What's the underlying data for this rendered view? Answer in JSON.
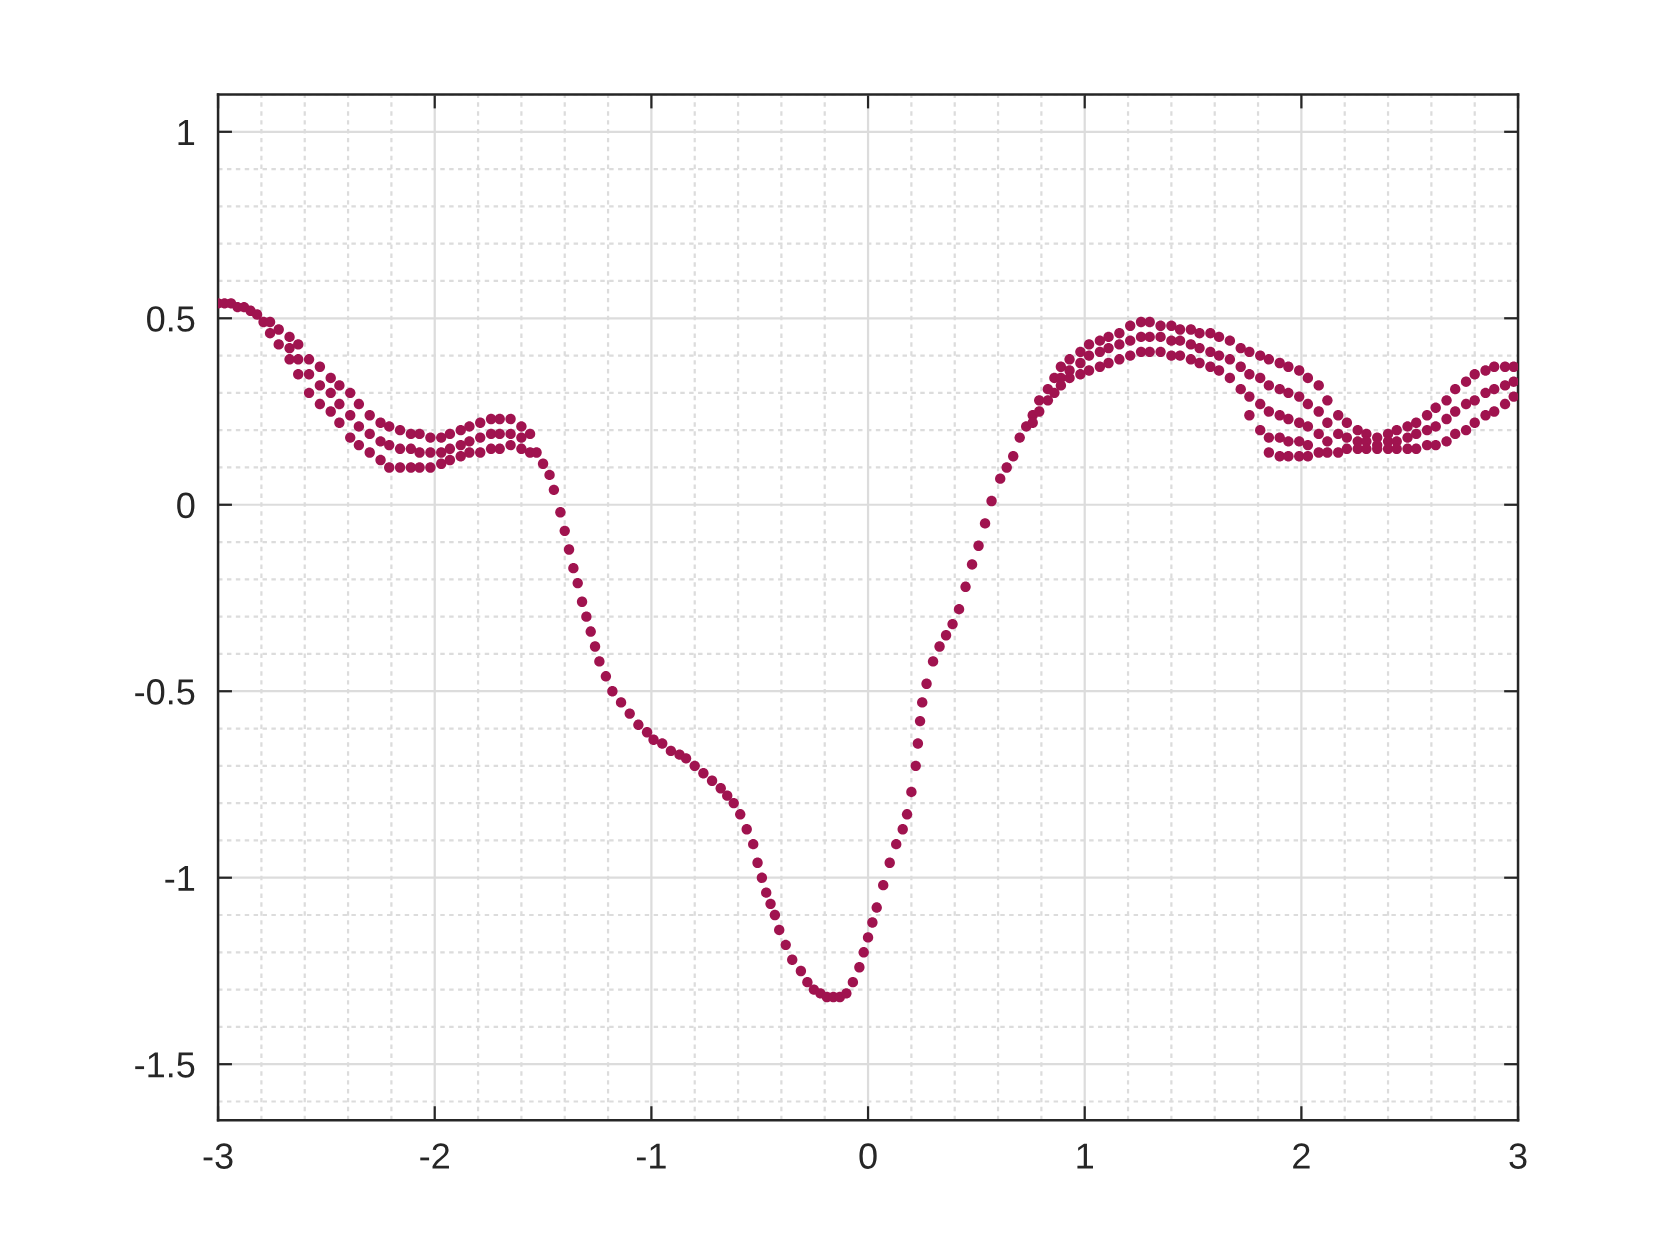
{
  "chart_data": {
    "type": "scatter",
    "marker": "circle",
    "color": "#a0134f",
    "grid": true,
    "xlim": [
      -3,
      3
    ],
    "ylim": [
      -1.65,
      1.1
    ],
    "xticks": [
      -3,
      -2,
      -1,
      0,
      1,
      2,
      3
    ],
    "yticks": [
      -1.5,
      -1,
      -0.5,
      0,
      0.5,
      1
    ],
    "x": [
      -3.0,
      -2.97,
      -2.94,
      -2.91,
      -2.88,
      -2.85,
      -2.82,
      -2.79,
      -2.76,
      -2.76,
      -2.72,
      -2.72,
      -2.67,
      -2.67,
      -2.67,
      -2.63,
      -2.63,
      -2.63,
      -2.58,
      -2.58,
      -2.58,
      -2.53,
      -2.53,
      -2.53,
      -2.48,
      -2.48,
      -2.48,
      -2.44,
      -2.44,
      -2.44,
      -2.39,
      -2.39,
      -2.39,
      -2.35,
      -2.35,
      -2.35,
      -2.3,
      -2.3,
      -2.3,
      -2.25,
      -2.25,
      -2.25,
      -2.21,
      -2.21,
      -2.21,
      -2.16,
      -2.16,
      -2.16,
      -2.11,
      -2.11,
      -2.11,
      -2.07,
      -2.07,
      -2.07,
      -2.02,
      -2.02,
      -2.02,
      -1.97,
      -1.97,
      -1.97,
      -1.93,
      -1.93,
      -1.93,
      -1.88,
      -1.88,
      -1.88,
      -1.84,
      -1.84,
      -1.84,
      -1.79,
      -1.79,
      -1.79,
      -1.74,
      -1.74,
      -1.74,
      -1.7,
      -1.7,
      -1.7,
      -1.65,
      -1.65,
      -1.65,
      -1.6,
      -1.6,
      -1.6,
      -1.56,
      -1.56,
      -1.53,
      -1.5,
      -1.47,
      -1.45,
      -1.42,
      -1.4,
      -1.38,
      -1.36,
      -1.34,
      -1.32,
      -1.3,
      -1.28,
      -1.26,
      -1.24,
      -1.21,
      -1.18,
      -1.14,
      -1.1,
      -1.06,
      -1.02,
      -0.99,
      -0.95,
      -0.91,
      -0.87,
      -0.84,
      -0.8,
      -0.76,
      -0.72,
      -0.68,
      -0.65,
      -0.62,
      -0.59,
      -0.56,
      -0.53,
      -0.51,
      -0.49,
      -0.47,
      -0.45,
      -0.43,
      -0.41,
      -0.38,
      -0.35,
      -0.31,
      -0.28,
      -0.25,
      -0.22,
      -0.19,
      -0.16,
      -0.13,
      -0.1,
      -0.07,
      -0.04,
      -0.02,
      0.0,
      0.02,
      0.04,
      0.07,
      0.1,
      0.13,
      0.16,
      0.18,
      0.2,
      0.22,
      0.23,
      0.24,
      0.25,
      0.27,
      0.3,
      0.33,
      0.36,
      0.39,
      0.42,
      0.45,
      0.48,
      0.51,
      0.54,
      0.57,
      0.61,
      0.64,
      0.67,
      0.7,
      0.73,
      0.76,
      0.76,
      0.79,
      0.79,
      0.83,
      0.83,
      0.86,
      0.86,
      0.89,
      0.89,
      0.89,
      0.93,
      0.93,
      0.93,
      0.98,
      0.98,
      0.98,
      1.02,
      1.02,
      1.02,
      1.07,
      1.07,
      1.07,
      1.11,
      1.11,
      1.11,
      1.16,
      1.16,
      1.16,
      1.21,
      1.21,
      1.21,
      1.26,
      1.26,
      1.26,
      1.3,
      1.3,
      1.3,
      1.35,
      1.35,
      1.35,
      1.4,
      1.4,
      1.4,
      1.44,
      1.44,
      1.44,
      1.49,
      1.49,
      1.49,
      1.53,
      1.53,
      1.53,
      1.58,
      1.58,
      1.58,
      1.62,
      1.62,
      1.62,
      1.67,
      1.67,
      1.67,
      1.72,
      1.72,
      1.72,
      1.76,
      1.76,
      1.76,
      1.76,
      1.81,
      1.81,
      1.81,
      1.81,
      1.85,
      1.85,
      1.85,
      1.85,
      1.85,
      1.9,
      1.9,
      1.9,
      1.9,
      1.9,
      1.94,
      1.94,
      1.94,
      1.94,
      1.94,
      1.99,
      1.99,
      1.99,
      1.99,
      1.99,
      2.03,
      2.03,
      2.03,
      2.03,
      2.03,
      2.08,
      2.08,
      2.08,
      2.08,
      2.12,
      2.12,
      2.12,
      2.12,
      2.17,
      2.17,
      2.17,
      2.21,
      2.21,
      2.21,
      2.26,
      2.26,
      2.26,
      2.3,
      2.3,
      2.3,
      2.35,
      2.35,
      2.35,
      2.4,
      2.4,
      2.4,
      2.44,
      2.44,
      2.44,
      2.49,
      2.49,
      2.49,
      2.53,
      2.53,
      2.53,
      2.58,
      2.58,
      2.58,
      2.62,
      2.62,
      2.62,
      2.67,
      2.67,
      2.67,
      2.71,
      2.71,
      2.71,
      2.76,
      2.76,
      2.76,
      2.8,
      2.8,
      2.8,
      2.85,
      2.85,
      2.85,
      2.89,
      2.89,
      2.89,
      2.94,
      2.94,
      2.94,
      2.98,
      2.98,
      2.98
    ],
    "values": [
      0.54,
      0.54,
      0.54,
      0.53,
      0.53,
      0.52,
      0.51,
      0.49,
      0.49,
      0.46,
      0.47,
      0.43,
      0.45,
      0.42,
      0.39,
      0.43,
      0.39,
      0.35,
      0.39,
      0.35,
      0.3,
      0.37,
      0.32,
      0.27,
      0.34,
      0.3,
      0.25,
      0.32,
      0.27,
      0.22,
      0.3,
      0.24,
      0.18,
      0.27,
      0.21,
      0.16,
      0.24,
      0.19,
      0.14,
      0.22,
      0.17,
      0.12,
      0.21,
      0.16,
      0.1,
      0.2,
      0.15,
      0.1,
      0.19,
      0.15,
      0.1,
      0.19,
      0.14,
      0.1,
      0.18,
      0.14,
      0.1,
      0.18,
      0.14,
      0.11,
      0.19,
      0.15,
      0.12,
      0.2,
      0.16,
      0.13,
      0.21,
      0.17,
      0.14,
      0.22,
      0.18,
      0.14,
      0.23,
      0.19,
      0.15,
      0.23,
      0.19,
      0.15,
      0.23,
      0.19,
      0.16,
      0.21,
      0.18,
      0.15,
      0.19,
      0.14,
      0.14,
      0.11,
      0.08,
      0.04,
      -0.02,
      -0.07,
      -0.12,
      -0.17,
      -0.21,
      -0.26,
      -0.3,
      -0.34,
      -0.38,
      -0.42,
      -0.46,
      -0.5,
      -0.53,
      -0.56,
      -0.59,
      -0.61,
      -0.63,
      -0.64,
      -0.66,
      -0.67,
      -0.68,
      -0.7,
      -0.72,
      -0.74,
      -0.76,
      -0.78,
      -0.8,
      -0.83,
      -0.87,
      -0.91,
      -0.96,
      -1.0,
      -1.04,
      -1.07,
      -1.1,
      -1.14,
      -1.18,
      -1.22,
      -1.25,
      -1.28,
      -1.3,
      -1.31,
      -1.32,
      -1.32,
      -1.32,
      -1.31,
      -1.28,
      -1.24,
      -1.2,
      -1.16,
      -1.12,
      -1.08,
      -1.02,
      -0.96,
      -0.91,
      -0.87,
      -0.83,
      -0.77,
      -0.7,
      -0.64,
      -0.58,
      -0.53,
      -0.48,
      -0.42,
      -0.38,
      -0.35,
      -0.32,
      -0.28,
      -0.22,
      -0.16,
      -0.11,
      -0.05,
      0.01,
      0.07,
      0.1,
      0.13,
      0.18,
      0.21,
      0.24,
      0.22,
      0.28,
      0.25,
      0.31,
      0.28,
      0.34,
      0.3,
      0.37,
      0.34,
      0.32,
      0.39,
      0.36,
      0.34,
      0.41,
      0.38,
      0.35,
      0.43,
      0.4,
      0.36,
      0.44,
      0.41,
      0.37,
      0.45,
      0.42,
      0.38,
      0.46,
      0.43,
      0.39,
      0.48,
      0.44,
      0.4,
      0.49,
      0.45,
      0.41,
      0.49,
      0.45,
      0.41,
      0.48,
      0.45,
      0.41,
      0.48,
      0.44,
      0.4,
      0.47,
      0.44,
      0.4,
      0.47,
      0.43,
      0.39,
      0.46,
      0.42,
      0.38,
      0.46,
      0.41,
      0.37,
      0.45,
      0.4,
      0.36,
      0.44,
      0.39,
      0.34,
      0.42,
      0.37,
      0.31,
      0.41,
      0.35,
      0.29,
      0.24,
      0.4,
      0.34,
      0.27,
      0.2,
      0.39,
      0.32,
      0.25,
      0.18,
      0.14,
      0.38,
      0.31,
      0.24,
      0.18,
      0.13,
      0.37,
      0.3,
      0.23,
      0.17,
      0.13,
      0.36,
      0.29,
      0.22,
      0.17,
      0.13,
      0.34,
      0.27,
      0.21,
      0.16,
      0.13,
      0.32,
      0.25,
      0.19,
      0.14,
      0.28,
      0.22,
      0.17,
      0.14,
      0.24,
      0.19,
      0.14,
      0.22,
      0.18,
      0.15,
      0.2,
      0.17,
      0.15,
      0.19,
      0.17,
      0.15,
      0.18,
      0.16,
      0.15,
      0.19,
      0.17,
      0.15,
      0.2,
      0.17,
      0.15,
      0.21,
      0.18,
      0.15,
      0.22,
      0.19,
      0.15,
      0.24,
      0.2,
      0.16,
      0.26,
      0.21,
      0.16,
      0.28,
      0.23,
      0.17,
      0.31,
      0.25,
      0.19,
      0.33,
      0.27,
      0.2,
      0.35,
      0.28,
      0.22,
      0.36,
      0.3,
      0.24,
      0.37,
      0.31,
      0.25,
      0.37,
      0.32,
      0.27,
      0.37,
      0.33,
      0.29
    ]
  }
}
